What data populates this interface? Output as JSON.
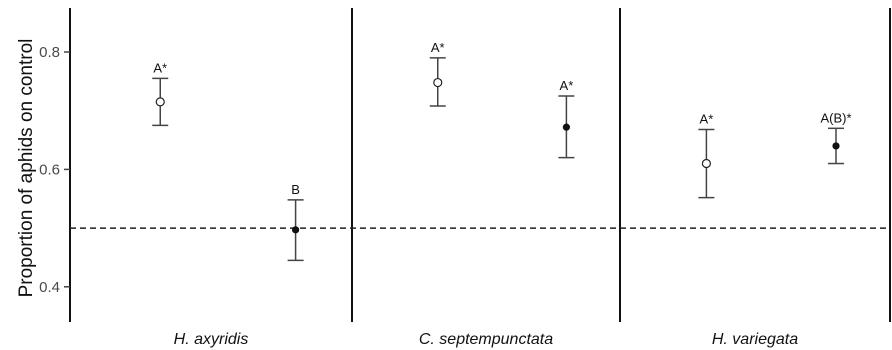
{
  "chart_data": {
    "type": "scatter",
    "title": "",
    "ylabel": "Proportion of aphids on control",
    "xlabel": "",
    "ylim": [
      0.34,
      0.875
    ],
    "yticks": [
      0.4,
      0.6,
      0.8
    ],
    "yticklabels": [
      "0.4",
      "0.6",
      "0.8"
    ],
    "reference_line": {
      "y": 0.5,
      "style": "dashed"
    },
    "grid": false,
    "legend": "none",
    "series_styles": [
      {
        "marker": "open-circle",
        "fill": "#ffffff",
        "stroke": "#222222"
      },
      {
        "marker": "filled-circle",
        "fill": "#111111",
        "stroke": "#111111"
      }
    ],
    "panels": [
      {
        "label": "H. axyridis",
        "points": [
          {
            "series": 0,
            "mean": 0.715,
            "lower": 0.675,
            "upper": 0.755,
            "sig": "A*"
          },
          {
            "series": 1,
            "mean": 0.497,
            "lower": 0.445,
            "upper": 0.548,
            "sig": "B"
          }
        ]
      },
      {
        "label": "C. septempunctata",
        "points": [
          {
            "series": 0,
            "mean": 0.748,
            "lower": 0.708,
            "upper": 0.79,
            "sig": "A*"
          },
          {
            "series": 1,
            "mean": 0.672,
            "lower": 0.62,
            "upper": 0.725,
            "sig": "A*"
          }
        ]
      },
      {
        "label": "H. variegata",
        "points": [
          {
            "series": 0,
            "mean": 0.61,
            "lower": 0.552,
            "upper": 0.668,
            "sig": "A*"
          },
          {
            "series": 1,
            "mean": 0.64,
            "lower": 0.61,
            "upper": 0.67,
            "sig": "A(B)*"
          }
        ]
      }
    ]
  }
}
